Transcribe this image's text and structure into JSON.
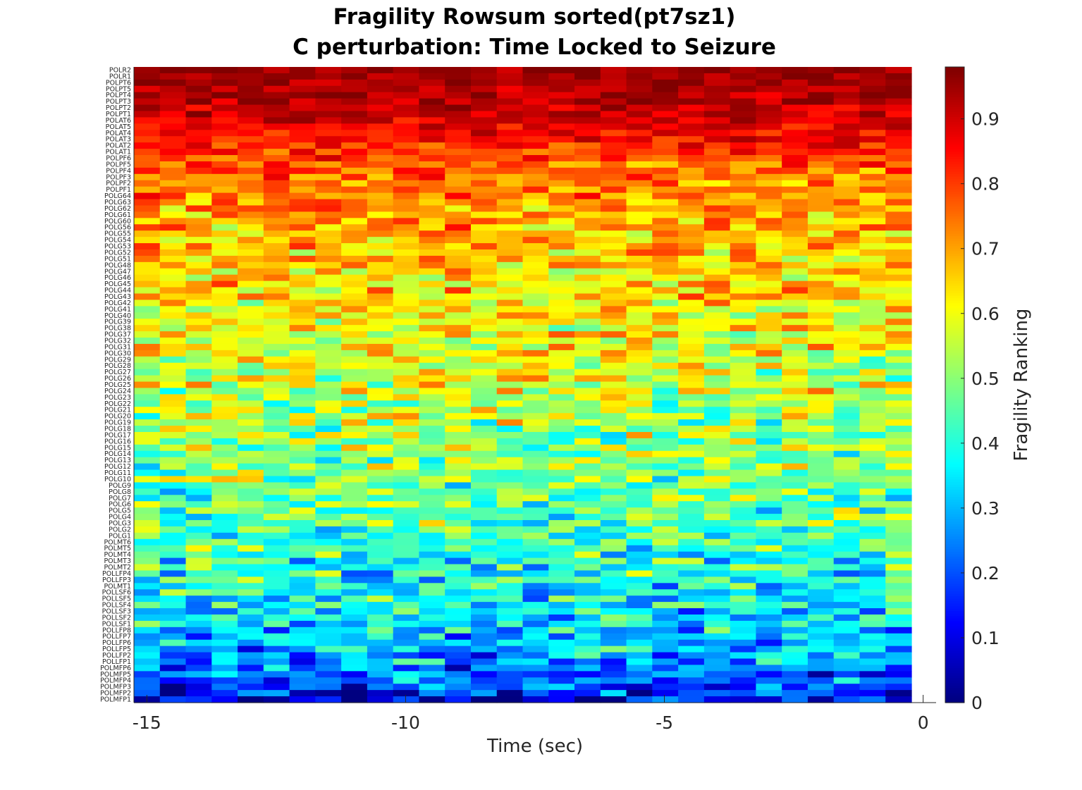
{
  "chart_data": {
    "type": "heatmap",
    "title": "Fragility Rowsum sorted(pt7sz1)",
    "subtitle": "C perturbation:  Time Locked to Seizure",
    "xlabel": "Time (sec)",
    "ylabel": "",
    "xlim": [
      -15.25,
      0.25
    ],
    "x_ticks": [
      -15,
      -10,
      -5,
      0
    ],
    "x_tick_labels": [
      "-15",
      "-10",
      "-5",
      "0"
    ],
    "time_start": -15,
    "time_end": 0,
    "n_time_windows": 30,
    "rows_top_to_bottom": [
      "POLR2",
      "POLR1",
      "POLPT6",
      "POLPT5",
      "POLPT4",
      "POLPT3",
      "POLPT2",
      "POLPT1",
      "POLAT6",
      "POLAT5",
      "POLAT4",
      "POLAT3",
      "POLAT2",
      "POLAT1",
      "POLPF6",
      "POLPF5",
      "POLPF4",
      "POLPF3",
      "POLPF2",
      "POLPF1",
      "POLG64",
      "POLG63",
      "POLG62",
      "POLG61",
      "POLG60",
      "POLG56",
      "POLG55",
      "POLG54",
      "POLG53",
      "POLG52",
      "POLG51",
      "POLG48",
      "POLG47",
      "POLG46",
      "POLG45",
      "POLG44",
      "POLG43",
      "POLG42",
      "POLG41",
      "POLG40",
      "POLG39",
      "POLG38",
      "POLG37",
      "POLG32",
      "POLG31",
      "POLG30",
      "POLG29",
      "POLG28",
      "POLG27",
      "POLG26",
      "POLG25",
      "POLG24",
      "POLG23",
      "POLG22",
      "POLG21",
      "POLG20",
      "POLG19",
      "POLG18",
      "POLG17",
      "POLG16",
      "POLG15",
      "POLG14",
      "POLG13",
      "POLG12",
      "POLG11",
      "POLG10",
      "POLG9",
      "POLG8",
      "POLG7",
      "POLG6",
      "POLG5",
      "POLG4",
      "POLG3",
      "POLG2",
      "POLG1",
      "POLMT6",
      "POLMT5",
      "POLMT4",
      "POLMT3",
      "POLMT2",
      "POLLFP4",
      "POLLFP3",
      "POLMT1",
      "POLLSF6",
      "POLLSF5",
      "POLLSF4",
      "POLLSF3",
      "POLLSF2",
      "POLLSF1",
      "POLLFP8",
      "POLLFP7",
      "POLLFP6",
      "POLLFP5",
      "POLLFP2",
      "POLLFP1",
      "POLMFP6",
      "POLMFP5",
      "POLMFP4",
      "POLMFP3",
      "POLMFP2",
      "POLMFP1"
    ],
    "row_mean_fragility_top_to_bottom": [
      0.96,
      0.95,
      0.94,
      0.94,
      0.93,
      0.93,
      0.92,
      0.91,
      0.9,
      0.88,
      0.87,
      0.85,
      0.83,
      0.81,
      0.78,
      0.77,
      0.76,
      0.75,
      0.74,
      0.73,
      0.72,
      0.71,
      0.7,
      0.7,
      0.69,
      0.69,
      0.68,
      0.68,
      0.67,
      0.67,
      0.66,
      0.66,
      0.65,
      0.65,
      0.64,
      0.64,
      0.63,
      0.63,
      0.62,
      0.62,
      0.61,
      0.61,
      0.6,
      0.6,
      0.59,
      0.59,
      0.58,
      0.58,
      0.57,
      0.57,
      0.56,
      0.56,
      0.55,
      0.55,
      0.54,
      0.54,
      0.53,
      0.53,
      0.52,
      0.52,
      0.51,
      0.51,
      0.5,
      0.5,
      0.49,
      0.49,
      0.48,
      0.47,
      0.47,
      0.46,
      0.46,
      0.45,
      0.45,
      0.44,
      0.43,
      0.43,
      0.42,
      0.41,
      0.41,
      0.4,
      0.39,
      0.39,
      0.38,
      0.37,
      0.36,
      0.35,
      0.35,
      0.34,
      0.33,
      0.32,
      0.31,
      0.3,
      0.29,
      0.28,
      0.27,
      0.25,
      0.23,
      0.21,
      0.18,
      0.15,
      0.1
    ],
    "colorbar": {
      "label": "Fragility Ranking",
      "clim": [
        0,
        0.98
      ],
      "ticks": [
        0,
        0.1,
        0.2,
        0.3,
        0.4,
        0.5,
        0.6,
        0.7,
        0.8,
        0.9
      ],
      "tick_labels": [
        "0",
        "0.1",
        "0.2",
        "0.3",
        "0.4",
        "0.5",
        "0.6",
        "0.7",
        "0.8",
        "0.9"
      ],
      "colormap": "jet"
    },
    "grid": false
  }
}
